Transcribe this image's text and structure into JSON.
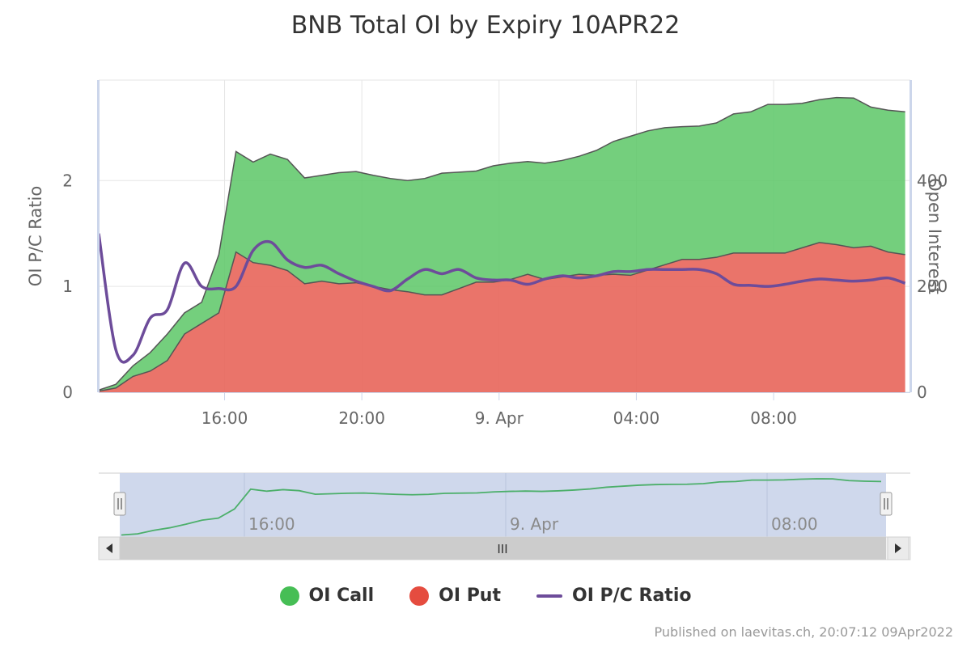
{
  "chart_data": {
    "type": "area",
    "title": "BNB Total OI by Expiry 10APR22",
    "x_axis": {
      "type": "datetime",
      "range": [
        "2022-04-08 12:20",
        "2022-04-09 12:00"
      ],
      "tick_labels": [
        "16:00",
        "20:00",
        "9. Apr",
        "04:00",
        "08:00"
      ]
    },
    "y_axis_left": {
      "title": "OI P/C Ratio",
      "range": [
        0,
        2.95
      ],
      "tick_labels": [
        "0",
        "1",
        "2"
      ]
    },
    "y_axis_right": {
      "title": "Open Interest",
      "range": [
        0,
        590
      ],
      "tick_labels": [
        "0",
        "200",
        "400"
      ]
    },
    "x_hours": [
      0,
      0.5,
      1,
      1.5,
      2,
      2.5,
      3,
      3.5,
      4,
      4.5,
      5,
      5.5,
      6,
      6.5,
      7,
      7.5,
      8,
      8.5,
      9,
      9.5,
      10,
      10.5,
      11,
      11.5,
      12,
      12.5,
      13,
      13.5,
      14,
      14.5,
      15,
      15.5,
      16,
      16.5,
      17,
      17.5,
      18,
      18.5,
      19,
      19.5,
      20,
      20.5,
      21,
      21.5,
      22,
      22.5,
      23,
      23.5
    ],
    "series": [
      {
        "name": "OI Put",
        "color": "#e8685d",
        "axis": "right",
        "stacking": "normal",
        "values": [
          2,
          8,
          30,
          40,
          60,
          110,
          130,
          150,
          265,
          245,
          240,
          230,
          205,
          210,
          205,
          207,
          200,
          194,
          190,
          184,
          184,
          196,
          208,
          208,
          213,
          223,
          213,
          218,
          223,
          221,
          223,
          221,
          231,
          241,
          251,
          251,
          255,
          263,
          263,
          263,
          263,
          273,
          283,
          279,
          273,
          276,
          265,
          260
        ]
      },
      {
        "name": "OI Call",
        "color": "#5cc766",
        "axis": "right",
        "stacking": "normal",
        "values": [
          2,
          7,
          20,
          35,
          50,
          40,
          40,
          110,
          190,
          190,
          210,
          210,
          200,
          200,
          210,
          210,
          210,
          210,
          210,
          220,
          230,
          220,
          210,
          220,
          220,
          213,
          220,
          220,
          223,
          236,
          251,
          263,
          263,
          259,
          251,
          252,
          254,
          263,
          267,
          281,
          281,
          273,
          270,
          278,
          283,
          263,
          268,
          270
        ]
      },
      {
        "name": "OI P/C Ratio",
        "color": "#6d4c9a",
        "axis": "left",
        "values": [
          1.5,
          0.4,
          0.35,
          0.7,
          0.78,
          1.22,
          1.0,
          0.98,
          1.0,
          1.34,
          1.42,
          1.25,
          1.18,
          1.2,
          1.12,
          1.05,
          1.0,
          0.96,
          1.07,
          1.16,
          1.12,
          1.16,
          1.08,
          1.06,
          1.06,
          1.02,
          1.07,
          1.1,
          1.08,
          1.1,
          1.14,
          1.14,
          1.16,
          1.16,
          1.16,
          1.16,
          1.12,
          1.02,
          1.01,
          1.0,
          1.02,
          1.05,
          1.07,
          1.06,
          1.05,
          1.06,
          1.08,
          1.03
        ]
      }
    ],
    "navigator": {
      "tick_labels": [
        "16:00",
        "9. Apr",
        "08:00"
      ],
      "scrollbar_symbol": "III"
    },
    "legend": [
      "OI Call",
      "OI Put",
      "OI P/C Ratio"
    ],
    "legend_position": "bottom-center",
    "grid": true
  },
  "credit": "Published on laevitas.ch, 20:07:12 09Apr2022"
}
